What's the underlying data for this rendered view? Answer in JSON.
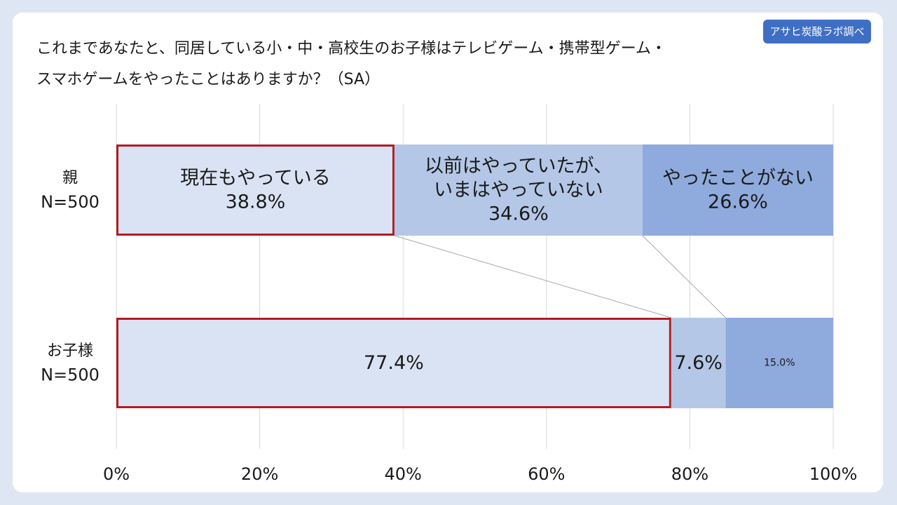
{
  "source_badge": "アサヒ炭酸ラボ調べ",
  "title_lines": [
    "これまであなたと、同居している小・中・高校生のお子様はテレビゲーム・携帯型ゲーム・",
    "スマホゲームをやったことはありますか？（SA）"
  ],
  "colors": {
    "currently": "#dae3f3",
    "previously": "#b4c7e7",
    "never": "#8faadc",
    "highlight_border": "#b01c22",
    "grid": "#d9d9d9",
    "connector": "#a6a6a6",
    "text": "#1a1a1a"
  },
  "chart_data": {
    "type": "bar",
    "orientation": "horizontal",
    "stacked": true,
    "percent_axis": true,
    "xlim": [
      0,
      100
    ],
    "xticks": [
      0,
      20,
      40,
      60,
      80,
      100
    ],
    "xtick_labels": [
      "0%",
      "20%",
      "40%",
      "60%",
      "80%",
      "100%"
    ],
    "grid": true,
    "legend": "none",
    "categories": [
      {
        "label_lines": [
          "親",
          "N=500"
        ]
      },
      {
        "label_lines": [
          "お子様",
          "N=500"
        ]
      }
    ],
    "series": [
      {
        "key": "currently",
        "values": [
          38.8,
          77.4
        ],
        "labels": [
          [
            "現在もやっている",
            "38.8%"
          ],
          [
            "77.4%"
          ]
        ],
        "highlighted": true
      },
      {
        "key": "previously",
        "values": [
          34.6,
          7.6
        ],
        "labels": [
          [
            "以前はやっていたが、",
            "いまはやっていない",
            "34.6%"
          ],
          [
            "7.6%"
          ]
        ]
      },
      {
        "key": "never",
        "values": [
          26.6,
          15.0
        ],
        "labels": [
          [
            "やったことがない",
            "26.6%"
          ],
          [
            "15.0%"
          ]
        ]
      }
    ]
  }
}
